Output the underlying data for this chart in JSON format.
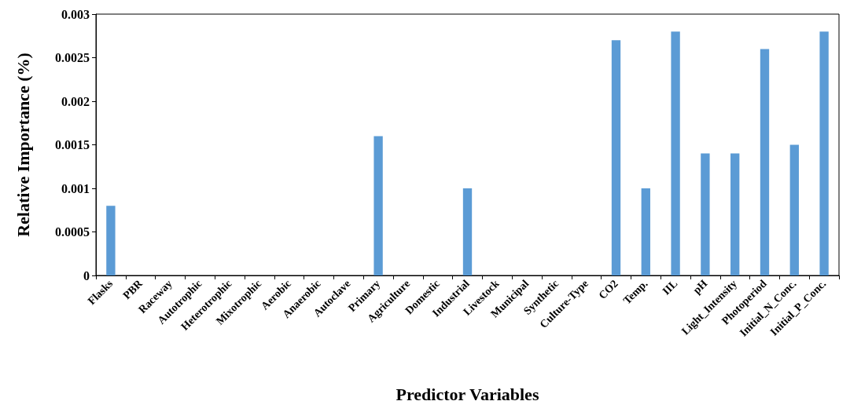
{
  "chart_data": {
    "type": "bar",
    "xlabel": "Predictor Variables",
    "ylabel": "Relative Importance (%)",
    "categories": [
      "Flasks",
      "PBR",
      "Raceway",
      "Autotrophic",
      "Heterotrophic",
      "Mixotrophic",
      "Aerobic",
      "Anaerobic",
      "Autoclave",
      "Primary",
      "Agriculture",
      "Domestic",
      "Industrial",
      "Livestock",
      "Municipal",
      "Synthetic",
      "Culture-Type",
      "CO2",
      "Temp.",
      "IIL",
      "pH",
      "Light_Intensity",
      "Photoperiod",
      "Initial_N_Conc.",
      "Initial_P_Conc."
    ],
    "values": [
      0.0008,
      0,
      0,
      0,
      0,
      0,
      0,
      0,
      0,
      0.0016,
      0,
      0,
      0.001,
      0,
      0,
      0,
      0,
      0.0027,
      0.001,
      0.0028,
      0.0014,
      0.0014,
      0.0026,
      0.0015,
      0.0028
    ],
    "color": "#5b9bd5",
    "ylim": [
      0,
      0.003
    ],
    "yticks": [
      0,
      0.0005,
      0.001,
      0.0015,
      0.002,
      0.0025,
      0.003
    ]
  }
}
